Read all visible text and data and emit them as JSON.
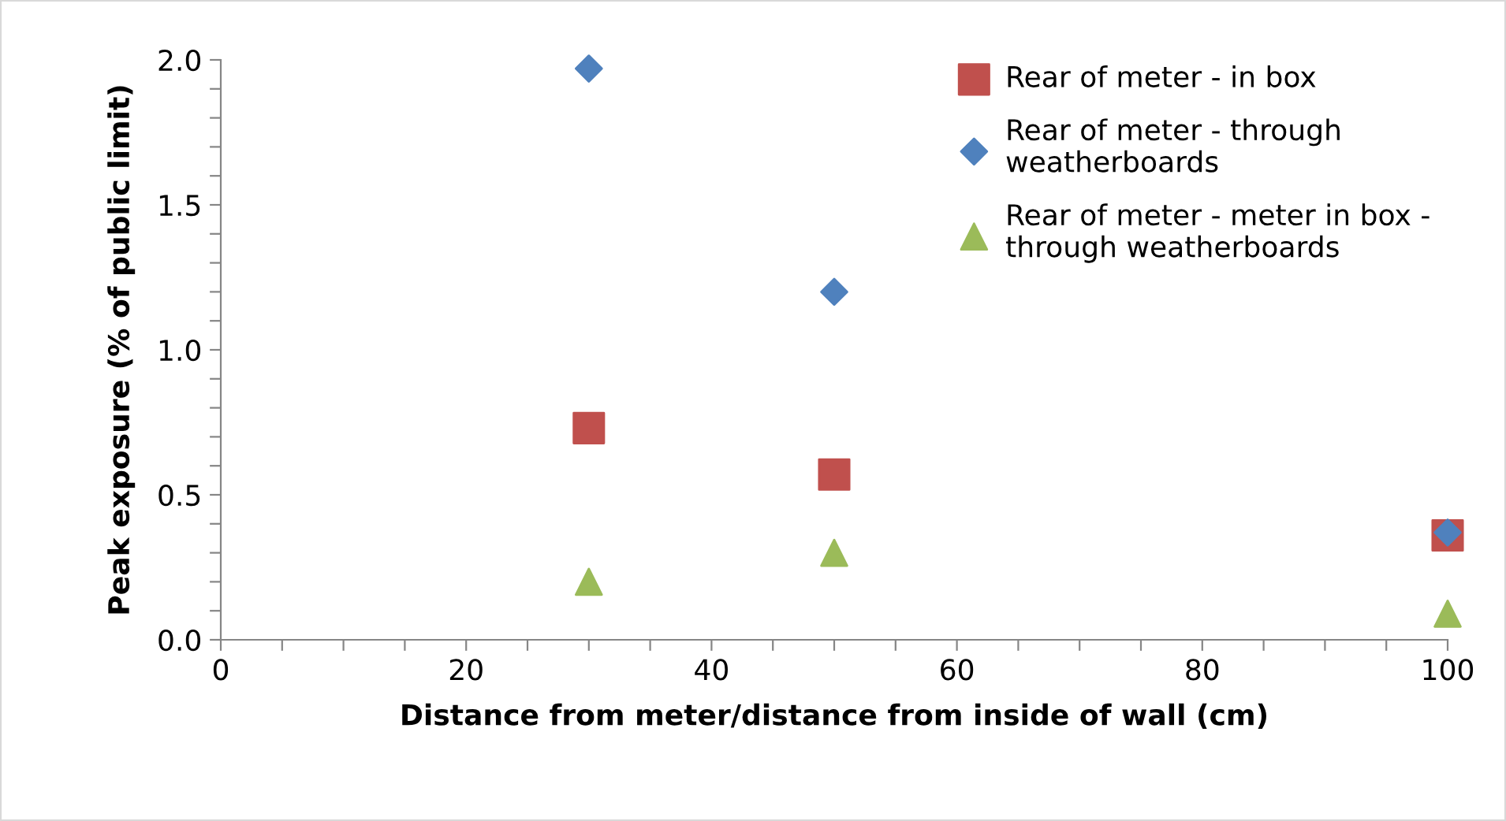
{
  "chart_data": {
    "type": "scatter",
    "xlabel": "Distance from meter/distance from inside of wall (cm)",
    "ylabel": "Peak exposure (% of public limit)",
    "series": [
      {
        "name": "Rear of meter - in box",
        "color": "#c0504d",
        "marker": "square",
        "x": [
          30,
          50,
          100
        ],
        "values": [
          0.73,
          0.57,
          0.36
        ]
      },
      {
        "name": "Rear of meter - through\nweatherboards",
        "color": "#4f81bd",
        "marker": "diamond",
        "x": [
          30,
          50,
          100
        ],
        "values": [
          1.97,
          1.2,
          0.37
        ]
      },
      {
        "name": "Rear of meter - meter in box -\nthrough weatherboards",
        "color": "#9bbb59",
        "marker": "triangle",
        "x": [
          30,
          50,
          100
        ],
        "values": [
          0.2,
          0.3,
          0.09
        ]
      }
    ],
    "xlim": [
      0,
      100
    ],
    "xticks": [
      0,
      {
        "value": 5,
        "label": null
      },
      {
        "value": 10,
        "label": null
      },
      {
        "value": 15,
        "label": null
      },
      20,
      {
        "value": 25,
        "label": null
      },
      {
        "value": 30,
        "label": null
      },
      {
        "value": 35,
        "label": null
      },
      40,
      {
        "value": 45,
        "label": null
      },
      {
        "value": 50,
        "label": null
      },
      {
        "value": 55,
        "label": null
      },
      60,
      {
        "value": 65,
        "label": null
      },
      {
        "value": 70,
        "label": null
      },
      {
        "value": 75,
        "label": null
      },
      80,
      {
        "value": 85,
        "label": null
      },
      {
        "value": 90,
        "label": null
      },
      {
        "value": 95,
        "label": null
      },
      100
    ],
    "ylim": [
      0,
      2.0
    ],
    "yticks": [
      {
        "value": 0,
        "label": "0.0"
      },
      {
        "value": 0.1,
        "label": null
      },
      {
        "value": 0.2,
        "label": null
      },
      {
        "value": 0.3,
        "label": null
      },
      {
        "value": 0.4,
        "label": null
      },
      {
        "value": 0.5,
        "label": "0.5"
      },
      {
        "value": 0.6,
        "label": null
      },
      {
        "value": 0.7,
        "label": null
      },
      {
        "value": 0.8,
        "label": null
      },
      {
        "value": 0.9,
        "label": null
      },
      {
        "value": 1.0,
        "label": "1.0"
      },
      {
        "value": 1.1,
        "label": null
      },
      {
        "value": 1.2,
        "label": null
      },
      {
        "value": 1.3,
        "label": null
      },
      {
        "value": 1.4,
        "label": null
      },
      {
        "value": 1.5,
        "label": "1.5"
      },
      {
        "value": 1.6,
        "label": null
      },
      {
        "value": 1.7,
        "label": null
      },
      {
        "value": 1.8,
        "label": null
      },
      {
        "value": 1.9,
        "label": null
      },
      {
        "value": 2.0,
        "label": "2.0"
      }
    ],
    "grid": false,
    "legend": "top right"
  }
}
